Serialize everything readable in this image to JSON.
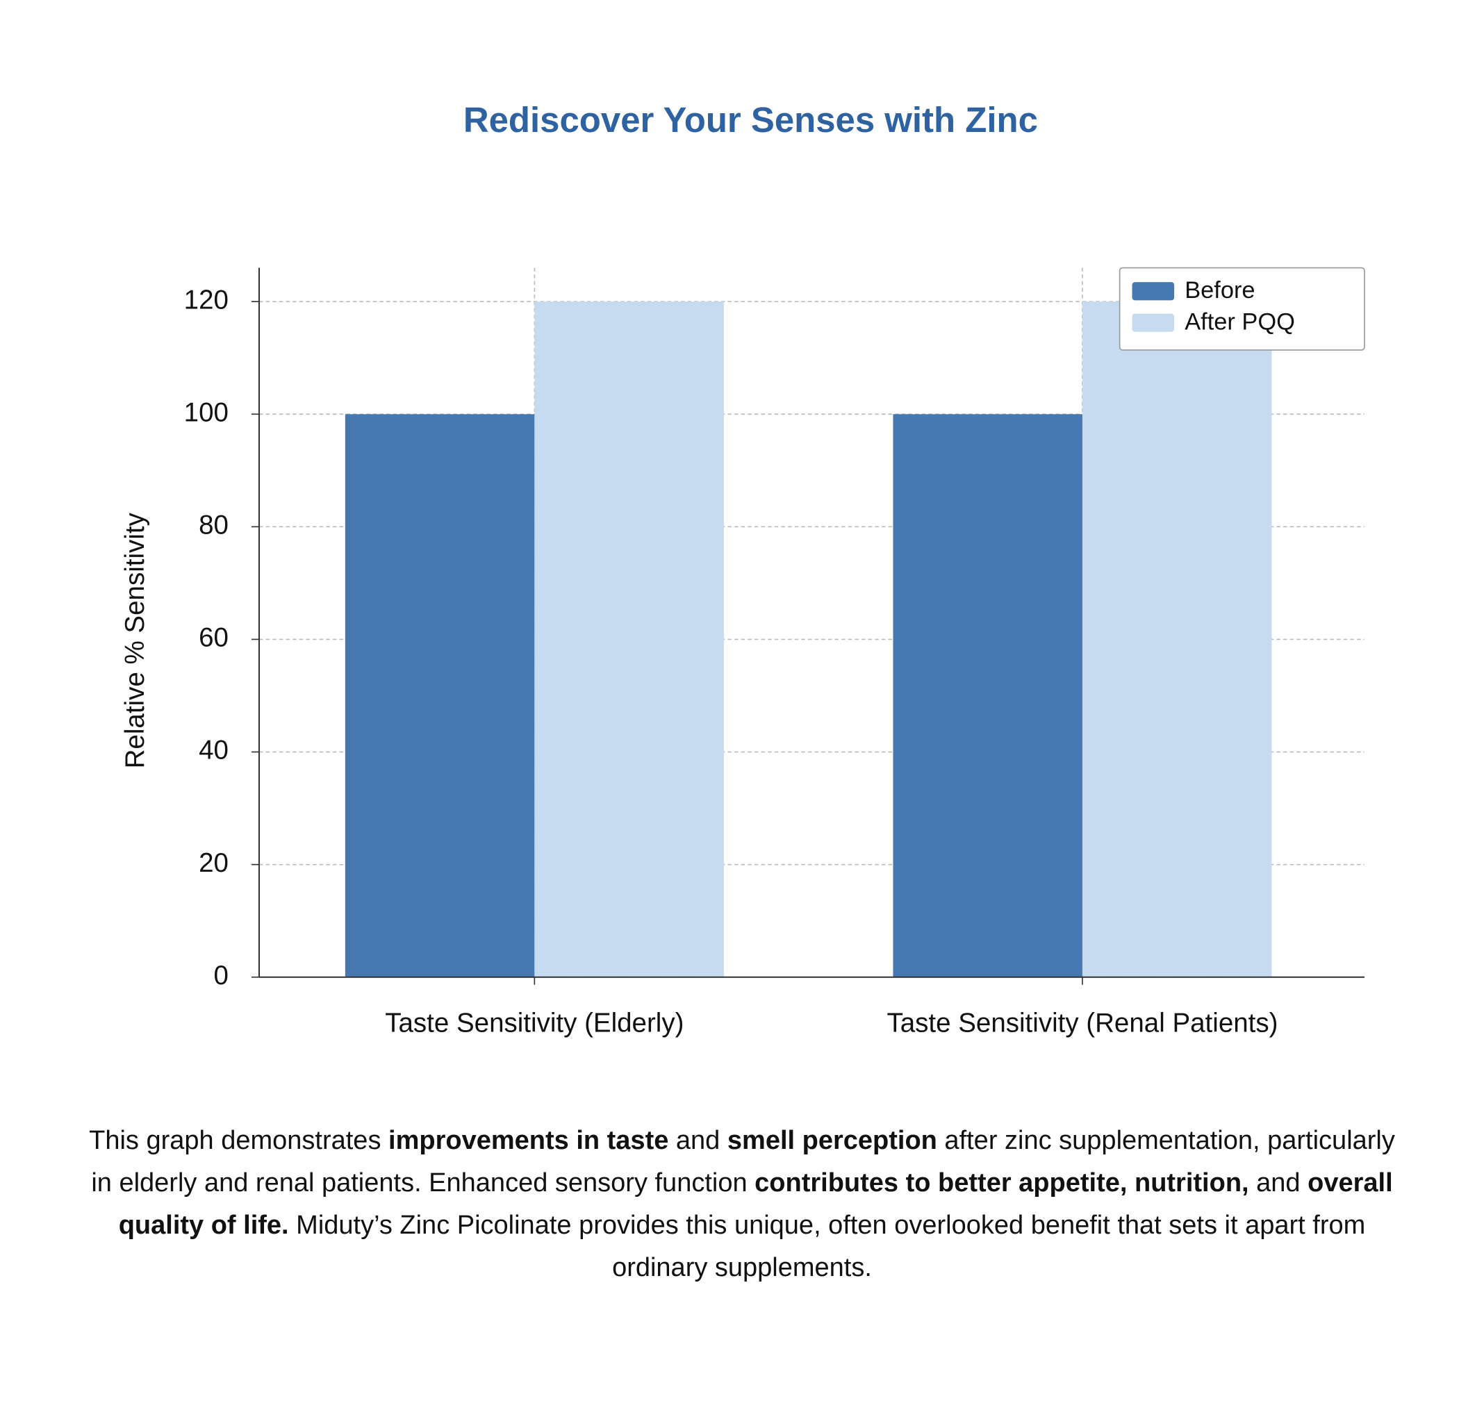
{
  "chart_data": {
    "type": "bar",
    "title": "Rediscover Your Senses with Zinc",
    "y_label": "Relative % Sensitivity",
    "categories": [
      "Taste Sensitivity (Elderly)",
      "Taste Sensitivity (Renal Patients)"
    ],
    "series": [
      {
        "name": "Before",
        "color": "#4679b2",
        "values": [
          100,
          100
        ]
      },
      {
        "name": "After PQQ",
        "color": "#c6dbf0",
        "values": [
          120,
          120
        ]
      }
    ],
    "ylim": [
      0,
      126
    ],
    "yticks": [
      0,
      20,
      40,
      60,
      80,
      100,
      120
    ],
    "grid": true,
    "legend": "upper right"
  },
  "description": [
    {
      "text": "This graph demonstrates ",
      "bold": false
    },
    {
      "text": "improvements in taste",
      "bold": true
    },
    {
      "text": " and ",
      "bold": false
    },
    {
      "text": "smell perception",
      "bold": true
    },
    {
      "text": " after zinc supplementation, particularly in elderly and renal patients. Enhanced sensory function ",
      "bold": false
    },
    {
      "text": "contributes to better appetite, nutrition,",
      "bold": true
    },
    {
      "text": " and ",
      "bold": false
    },
    {
      "text": "overall quality of life.",
      "bold": true
    },
    {
      "text": " Miduty’s Zinc Picolinate provides this unique, often overlooked benefit that sets it apart from ordinary supplements.",
      "bold": false
    }
  ]
}
